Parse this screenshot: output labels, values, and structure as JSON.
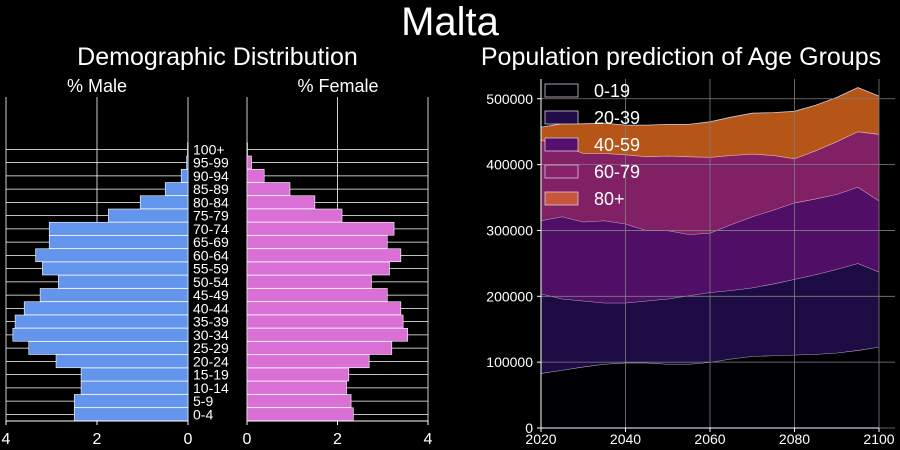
{
  "page": {
    "title": "Malta"
  },
  "pyramid": {
    "title": "Demographic Distribution",
    "male_label": "% Male",
    "female_label": "% Female",
    "male_color": "#6495ed",
    "female_color": "#da70d6",
    "grid_color": "#ffffff"
  },
  "forecast": {
    "title": "Population prediction of Age Groups",
    "grid_color": "#808080"
  },
  "chart_data": [
    {
      "type": "bar",
      "orientation": "horizontal",
      "title": "Demographic Distribution",
      "categories": [
        "0-4",
        "5-9",
        "10-14",
        "15-19",
        "20-24",
        "25-29",
        "30-34",
        "35-39",
        "40-44",
        "45-49",
        "50-54",
        "55-59",
        "60-64",
        "65-69",
        "70-74",
        "75-79",
        "80-84",
        "85-89",
        "90-94",
        "95-99",
        "100+"
      ],
      "series": [
        {
          "name": "% Male",
          "values": [
            2.5,
            2.5,
            2.35,
            2.35,
            2.9,
            3.5,
            3.85,
            3.8,
            3.6,
            3.25,
            2.85,
            3.2,
            3.35,
            3.05,
            3.05,
            1.75,
            1.05,
            0.5,
            0.15,
            0.03,
            0.01
          ]
        },
        {
          "name": "% Female",
          "values": [
            2.35,
            2.3,
            2.2,
            2.25,
            2.7,
            3.2,
            3.55,
            3.45,
            3.4,
            3.1,
            2.75,
            3.15,
            3.4,
            3.1,
            3.25,
            2.1,
            1.5,
            0.95,
            0.38,
            0.1,
            0.01
          ]
        }
      ],
      "xlim_male": [
        4,
        0
      ],
      "xlim_female": [
        0,
        4
      ],
      "xticks_male": [
        "4",
        "2",
        "0"
      ],
      "xticks_female": [
        "0",
        "2",
        "4"
      ],
      "grid": true
    },
    {
      "type": "area",
      "stacked": true,
      "title": "Population prediction of Age Groups",
      "x": [
        2020,
        2025,
        2030,
        2035,
        2040,
        2045,
        2050,
        2055,
        2060,
        2065,
        2070,
        2075,
        2080,
        2085,
        2090,
        2095,
        2100
      ],
      "series": [
        {
          "name": "0-19",
          "color": "#000004",
          "values": [
            83000,
            88000,
            93000,
            97000,
            99000,
            99000,
            97000,
            97000,
            100000,
            105000,
            109000,
            110000,
            111000,
            112000,
            114000,
            118000,
            123000
          ]
        },
        {
          "name": "20-39",
          "color": "#1f0c48",
          "values": [
            121000,
            108000,
            100000,
            93000,
            91000,
            94000,
            99000,
            104000,
            106000,
            104000,
            104000,
            109000,
            115000,
            121000,
            127000,
            132000,
            114000
          ]
        },
        {
          "name": "40-59",
          "color": "#550f6d",
          "values": [
            111000,
            125000,
            120000,
            125000,
            120000,
            107000,
            104000,
            93000,
            90000,
            100000,
            108000,
            112000,
            116000,
            115000,
            114000,
            116000,
            108000
          ]
        },
        {
          "name": "60-79",
          "color": "#88226a",
          "values": [
            122000,
            108000,
            104000,
            102000,
            105000,
            112000,
            113000,
            118000,
            115000,
            105000,
            95000,
            83000,
            67000,
            73000,
            80000,
            84000,
            101000
          ]
        },
        {
          "name": "80+",
          "color": "#ba3655",
          "values": [
            20000,
            33000,
            45000,
            46000,
            45000,
            48000,
            48000,
            49000,
            54000,
            58000,
            62000,
            65000,
            72000,
            69000,
            67000,
            67000,
            58000
          ]
        }
      ],
      "legend_colors": [
        "#000004",
        "#1f0c48",
        "#550f6d",
        "#88226a",
        "#ba3655"
      ],
      "top_color": "#f1711f",
      "xlim": [
        2020,
        2100
      ],
      "ylim": [
        0,
        530000
      ],
      "xticks": [
        2020,
        2040,
        2060,
        2080,
        2100
      ],
      "yticks": [
        0,
        100000,
        200000,
        300000,
        400000,
        500000
      ],
      "legend_position": "upper-left",
      "grid": true
    }
  ]
}
